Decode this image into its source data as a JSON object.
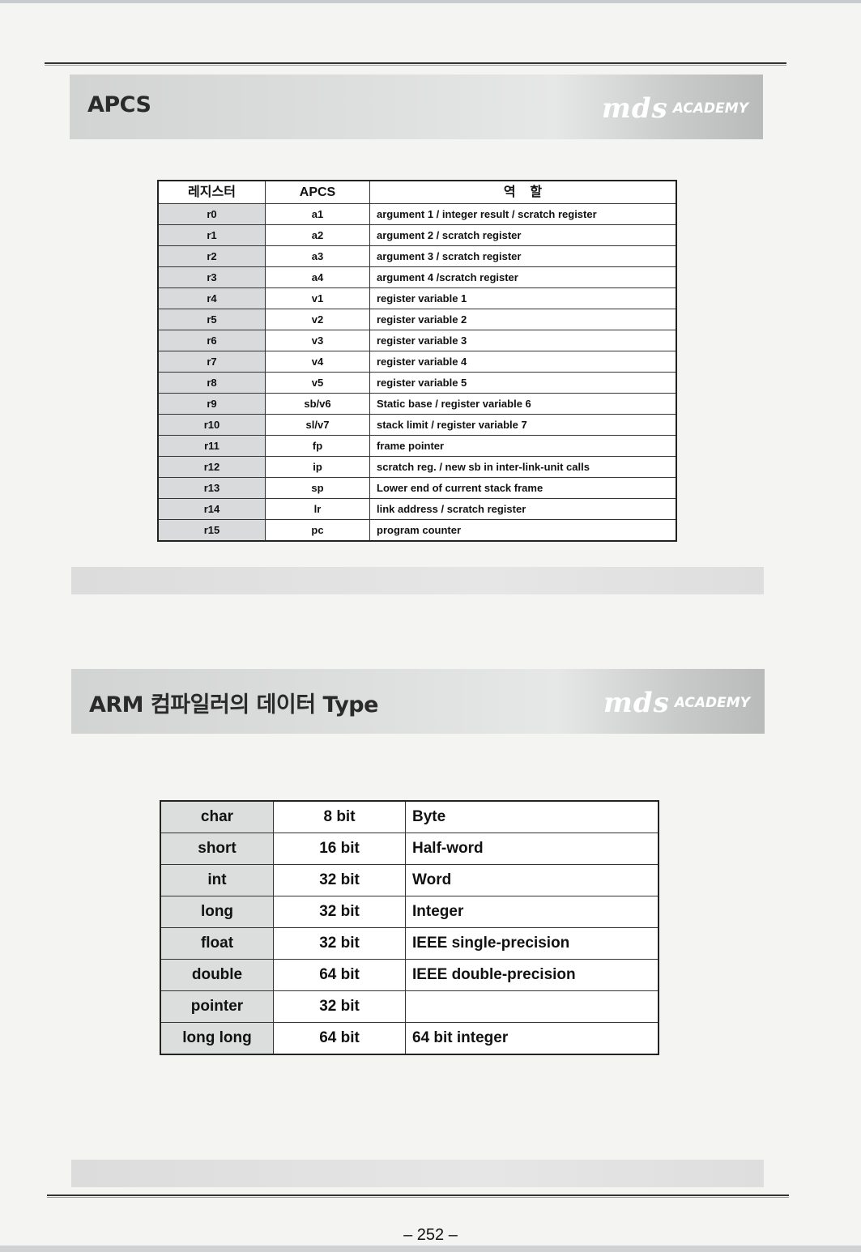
{
  "slide1": {
    "title": "APCS",
    "brand_mds": "mds",
    "brand_academy": "ACADEMY",
    "table": {
      "headers": [
        "레지스터",
        "APCS",
        "역    할"
      ],
      "rows": [
        [
          "r0",
          "a1",
          "argument 1 / integer result / scratch register"
        ],
        [
          "r1",
          "a2",
          "argument 2 / scratch register"
        ],
        [
          "r2",
          "a3",
          "argument 3 / scratch register"
        ],
        [
          "r3",
          "a4",
          "argument 4 /scratch register"
        ],
        [
          "r4",
          "v1",
          "register variable 1"
        ],
        [
          "r5",
          "v2",
          "register variable 2"
        ],
        [
          "r6",
          "v3",
          "register variable 3"
        ],
        [
          "r7",
          "v4",
          "register variable 4"
        ],
        [
          "r8",
          "v5",
          "register variable 5"
        ],
        [
          "r9",
          "sb/v6",
          "Static base / register variable 6"
        ],
        [
          "r10",
          "sl/v7",
          "stack limit / register variable 7"
        ],
        [
          "r11",
          "fp",
          "frame pointer"
        ],
        [
          "r12",
          "ip",
          "scratch reg. / new sb in inter-link-unit calls"
        ],
        [
          "r13",
          "sp",
          "Lower end of current stack frame"
        ],
        [
          "r14",
          "lr",
          "link address / scratch register"
        ],
        [
          "r15",
          "pc",
          "program counter"
        ]
      ]
    }
  },
  "slide2": {
    "title": "ARM 컴파일러의 데이터 Type",
    "brand_mds": "mds",
    "brand_academy": "ACADEMY",
    "table": {
      "rows": [
        [
          "char",
          "8 bit",
          "Byte"
        ],
        [
          "short",
          "16 bit",
          "Half-word"
        ],
        [
          "int",
          "32 bit",
          "Word"
        ],
        [
          "long",
          "32 bit",
          "Integer"
        ],
        [
          "float",
          "32 bit",
          "IEEE single-precision"
        ],
        [
          "double",
          "64 bit",
          "IEEE double-precision"
        ],
        [
          "pointer",
          "32 bit",
          ""
        ],
        [
          "long long",
          "64 bit",
          "64 bit integer"
        ]
      ]
    }
  },
  "page_number": "– 252 –"
}
